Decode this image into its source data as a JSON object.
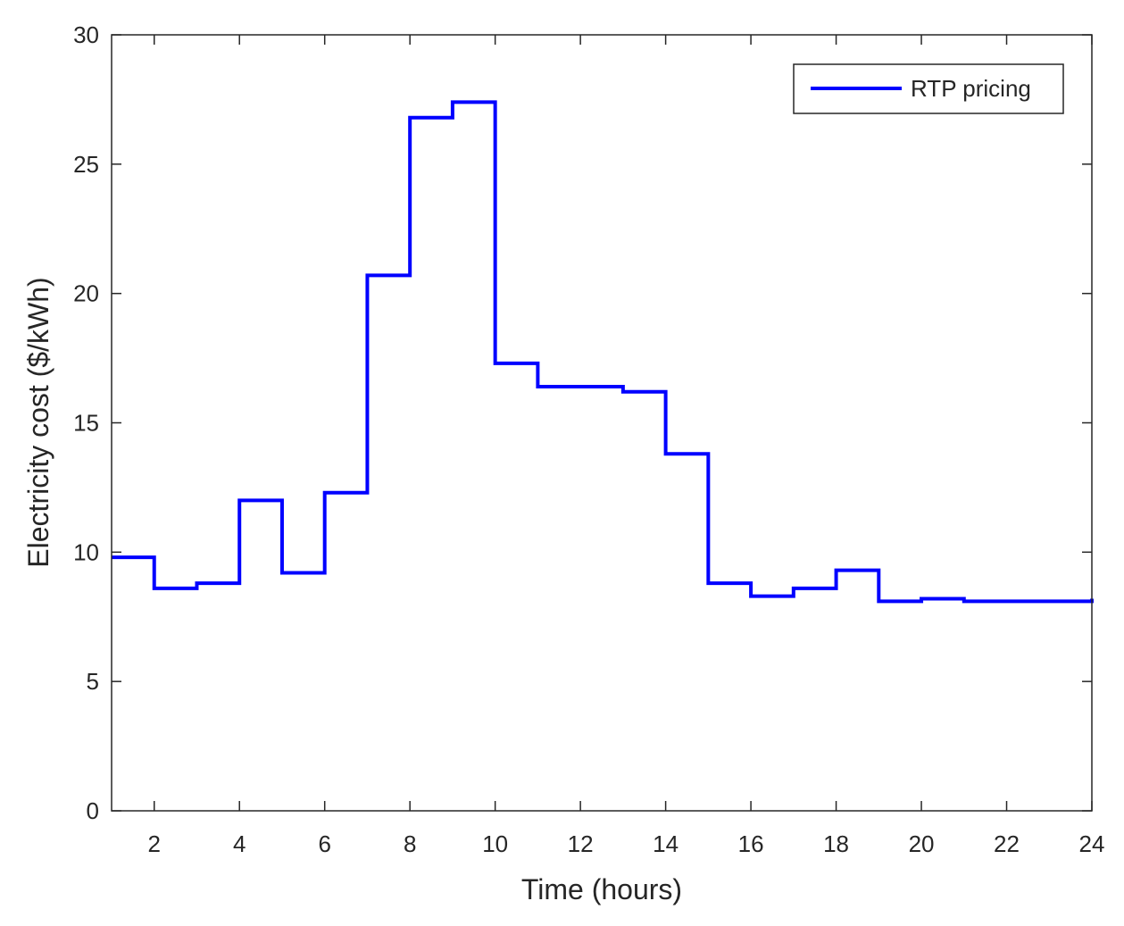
{
  "chart_data": {
    "type": "line",
    "step": "post",
    "xlabel": "Time (hours)",
    "ylabel": "Electricity cost ($/kWh)",
    "xlim": [
      1,
      24
    ],
    "ylim": [
      0,
      30
    ],
    "xticks": [
      2,
      4,
      6,
      8,
      10,
      12,
      14,
      16,
      18,
      20,
      22,
      24
    ],
    "yticks": [
      0,
      5,
      10,
      15,
      20,
      25,
      30
    ],
    "grid": false,
    "legend_position": "top-right",
    "series": [
      {
        "name": "RTP pricing",
        "color": "#0000ff",
        "x": [
          1,
          2,
          3,
          4,
          5,
          6,
          7,
          8,
          9,
          10,
          11,
          12,
          13,
          14,
          15,
          16,
          17,
          18,
          19,
          20,
          21,
          22,
          23,
          24
        ],
        "values": [
          9.8,
          8.6,
          8.8,
          12.0,
          9.2,
          12.3,
          20.7,
          26.8,
          27.4,
          17.3,
          16.4,
          16.4,
          16.2,
          13.8,
          8.8,
          8.3,
          8.6,
          9.3,
          8.1,
          8.2,
          8.1,
          8.1,
          8.1,
          8.2
        ]
      }
    ]
  }
}
